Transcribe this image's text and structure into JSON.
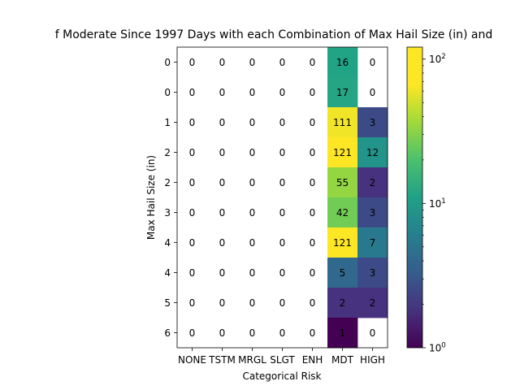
{
  "chart_data": {
    "type": "heatmap",
    "title": "f Moderate Since 1997 Days with each Combination of Max Hail Size (in) and",
    "xlabel": "Categorical Risk",
    "ylabel": "Max Hail Size (in)",
    "x_categories": [
      "NONE",
      "TSTM",
      "MRGL",
      "SLGT",
      "ENH",
      "MDT",
      "HIGH"
    ],
    "y_categories": [
      "0",
      "0",
      "1",
      "2",
      "2",
      "3",
      "4",
      "4",
      "5",
      "6"
    ],
    "values": [
      [
        0,
        0,
        0,
        0,
        0,
        16,
        0
      ],
      [
        0,
        0,
        0,
        0,
        0,
        17,
        0
      ],
      [
        0,
        0,
        0,
        0,
        0,
        111,
        3
      ],
      [
        0,
        0,
        0,
        0,
        0,
        121,
        12
      ],
      [
        0,
        0,
        0,
        0,
        0,
        55,
        2
      ],
      [
        0,
        0,
        0,
        0,
        0,
        42,
        3
      ],
      [
        0,
        0,
        0,
        0,
        0,
        121,
        7
      ],
      [
        0,
        0,
        0,
        0,
        0,
        5,
        3
      ],
      [
        0,
        0,
        0,
        0,
        0,
        2,
        2
      ],
      [
        0,
        0,
        0,
        0,
        0,
        1,
        0
      ]
    ],
    "colormap": "viridis",
    "color_scale": "log",
    "zero_cells": "blank (white)",
    "colorbar": {
      "scale": "log",
      "range": [
        1,
        121
      ],
      "ticks": [
        {
          "base": "10",
          "exp": "0"
        },
        {
          "base": "10",
          "exp": "1"
        },
        {
          "base": "10",
          "exp": "2"
        }
      ]
    }
  }
}
